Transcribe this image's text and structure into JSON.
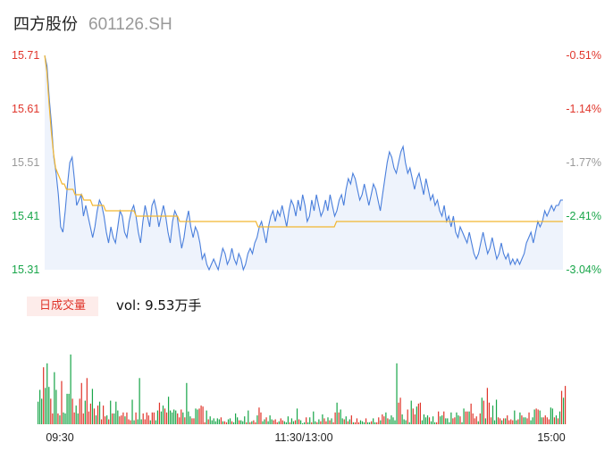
{
  "header": {
    "name": "四方股份",
    "code": "601126.SH"
  },
  "volume_panel": {
    "tab_label": "日成交量",
    "vol_prefix": "vol:",
    "vol_value": "9.53万手"
  },
  "colors": {
    "up": "#e0352b",
    "down": "#19a64a",
    "neutral": "#999999",
    "price_line": "#4a7fdc",
    "avg_line": "#f2b630",
    "area_fill": "#eef3fc"
  },
  "chart_data": [
    {
      "type": "line",
      "title": "",
      "y_ticks": [
        {
          "value": "15.71",
          "color": "up"
        },
        {
          "value": "15.61",
          "color": "up"
        },
        {
          "value": "15.51",
          "color": "neutral"
        },
        {
          "value": "15.41",
          "color": "down"
        },
        {
          "value": "15.31",
          "color": "down"
        }
      ],
      "y2_ticks": [
        {
          "value": "-0.51%",
          "color": "up"
        },
        {
          "value": "-1.14%",
          "color": "up"
        },
        {
          "value": "-1.77%",
          "color": "neutral"
        },
        {
          "value": "-2.41%",
          "color": "down"
        },
        {
          "value": "-3.04%",
          "color": "down"
        }
      ],
      "ylim": [
        15.31,
        15.71
      ],
      "x_ticks": [
        "09:30",
        "11:30/13:00",
        "15:00"
      ],
      "series": [
        {
          "values": [
            15.71,
            15.69,
            15.63,
            15.58,
            15.52,
            15.49,
            15.45,
            15.39,
            15.38,
            15.42,
            15.47,
            15.51,
            15.52,
            15.48,
            15.43,
            15.44,
            15.45,
            15.41,
            15.43,
            15.41,
            15.39,
            15.37,
            15.39,
            15.42,
            15.44,
            15.43,
            15.41,
            15.38,
            15.36,
            15.39,
            15.37,
            15.36,
            15.39,
            15.42,
            15.41,
            15.38,
            15.37,
            15.4,
            15.42,
            15.43,
            15.41,
            15.38,
            15.36,
            15.4,
            15.43,
            15.41,
            15.39,
            15.43,
            15.44,
            15.42,
            15.39,
            15.41,
            15.43,
            15.41,
            15.38,
            15.36,
            15.4,
            15.42,
            15.41,
            15.38,
            15.35,
            15.37,
            15.4,
            15.42,
            15.39,
            15.37,
            15.39,
            15.38,
            15.36,
            15.33,
            15.34,
            15.32,
            15.31,
            15.32,
            15.33,
            15.32,
            15.31,
            15.33,
            15.35,
            15.34,
            15.32,
            15.33,
            15.35,
            15.33,
            15.32,
            15.34,
            15.33,
            15.31,
            15.32,
            15.34,
            15.35,
            15.34,
            15.36,
            15.37,
            15.39,
            15.4,
            15.38,
            15.36,
            15.39,
            15.41,
            15.42,
            15.4,
            15.42,
            15.41,
            15.43,
            15.41,
            15.39,
            15.42,
            15.44,
            15.43,
            15.41,
            15.44,
            15.42,
            15.45,
            15.43,
            15.4,
            15.41,
            15.44,
            15.42,
            15.45,
            15.43,
            15.41,
            15.42,
            15.44,
            15.42,
            15.45,
            15.43,
            15.41,
            15.42,
            15.44,
            15.45,
            15.43,
            15.46,
            15.48,
            15.47,
            15.49,
            15.48,
            15.46,
            15.44,
            15.45,
            15.47,
            15.45,
            15.43,
            15.45,
            15.47,
            15.46,
            15.44,
            15.42,
            15.45,
            15.48,
            15.51,
            15.53,
            15.52,
            15.5,
            15.49,
            15.51,
            15.53,
            15.54,
            15.51,
            15.49,
            15.5,
            15.48,
            15.46,
            15.48,
            15.49,
            15.47,
            15.45,
            15.48,
            15.46,
            15.44,
            15.45,
            15.43,
            15.44,
            15.42,
            15.41,
            15.43,
            15.4,
            15.41,
            15.39,
            15.41,
            15.38,
            15.37,
            15.39,
            15.38,
            15.37,
            15.36,
            15.38,
            15.36,
            15.34,
            15.33,
            15.34,
            15.36,
            15.38,
            15.36,
            15.34,
            15.35,
            15.37,
            15.35,
            15.33,
            15.34,
            15.36,
            15.34,
            15.33,
            15.34,
            15.32,
            15.33,
            15.32,
            15.33,
            15.32,
            15.33,
            15.34,
            15.36,
            15.37,
            15.38,
            15.36,
            15.38,
            15.4,
            15.39,
            15.4,
            15.42,
            15.41,
            15.42,
            15.43,
            15.42,
            15.43,
            15.43,
            15.44,
            15.44
          ]
        },
        {
          "values": [
            15.71,
            15.68,
            15.62,
            15.57,
            15.53,
            15.5,
            15.49,
            15.48,
            15.47,
            15.47,
            15.46,
            15.46,
            15.46,
            15.46,
            15.45,
            15.45,
            15.45,
            15.45,
            15.44,
            15.44,
            15.44,
            15.44,
            15.43,
            15.43,
            15.43,
            15.43,
            15.43,
            15.43,
            15.42,
            15.42,
            15.42,
            15.42,
            15.42,
            15.42,
            15.42,
            15.42,
            15.42,
            15.42,
            15.42,
            15.42,
            15.42,
            15.42,
            15.41,
            15.41,
            15.41,
            15.41,
            15.41,
            15.41,
            15.41,
            15.41,
            15.41,
            15.41,
            15.41,
            15.41,
            15.41,
            15.41,
            15.41,
            15.41,
            15.41,
            15.41,
            15.41,
            15.41,
            15.4,
            15.4,
            15.4,
            15.4,
            15.4,
            15.4,
            15.4,
            15.4,
            15.4,
            15.4,
            15.4,
            15.4,
            15.4,
            15.4,
            15.4,
            15.4,
            15.4,
            15.4,
            15.4,
            15.4,
            15.4,
            15.4,
            15.4,
            15.4,
            15.4,
            15.4,
            15.4,
            15.4,
            15.4,
            15.4,
            15.4,
            15.4,
            15.4,
            15.4,
            15.4,
            15.4,
            15.39,
            15.39,
            15.39,
            15.39,
            15.39,
            15.39,
            15.39,
            15.39,
            15.39,
            15.39,
            15.39,
            15.39,
            15.39,
            15.39,
            15.39,
            15.39,
            15.39,
            15.39,
            15.39,
            15.39,
            15.39,
            15.39,
            15.39,
            15.39,
            15.39,
            15.39,
            15.39,
            15.39,
            15.39,
            15.39,
            15.39,
            15.39,
            15.39,
            15.39,
            15.39,
            15.39,
            15.4,
            15.4,
            15.4,
            15.4,
            15.4,
            15.4,
            15.4,
            15.4,
            15.4,
            15.4,
            15.4,
            15.4,
            15.4,
            15.4,
            15.4,
            15.4,
            15.4,
            15.4,
            15.4,
            15.4,
            15.4,
            15.4,
            15.4,
            15.4,
            15.4,
            15.4,
            15.4,
            15.4,
            15.4,
            15.4,
            15.4,
            15.4,
            15.4,
            15.4,
            15.4,
            15.4,
            15.4,
            15.4,
            15.4,
            15.4,
            15.4,
            15.4,
            15.4,
            15.4,
            15.4,
            15.4,
            15.4,
            15.4,
            15.4,
            15.4,
            15.4,
            15.4,
            15.4,
            15.4,
            15.4,
            15.4,
            15.4,
            15.4,
            15.4,
            15.4,
            15.4,
            15.4,
            15.4,
            15.4,
            15.4,
            15.4,
            15.4,
            15.4,
            15.4,
            15.4,
            15.4,
            15.4,
            15.4,
            15.4,
            15.4,
            15.4,
            15.4,
            15.4,
            15.4,
            15.4,
            15.4,
            15.4,
            15.4,
            15.4,
            15.4,
            15.4,
            15.4,
            15.4,
            15.4,
            15.4,
            15.4,
            15.4,
            15.4,
            15.4,
            15.4,
            15.4,
            15.4,
            15.4,
            15.4,
            15.4,
            15.4,
            15.4,
            15.4,
            15.4,
            15.4
          ]
        }
      ]
    },
    {
      "type": "bar",
      "title": "",
      "ylim": [
        0,
        1
      ],
      "values": [
        0.23,
        0.35,
        0.26,
        0.58,
        0.37,
        0.62,
        0.38,
        0.26,
        0.11,
        0.53,
        0.35,
        0.11,
        0.09,
        0.44,
        0.12,
        0.11,
        0.31,
        0.31,
        0.71,
        0.26,
        0.12,
        0.19,
        0.11,
        0.26,
        0.42,
        0.11,
        0.24,
        0.47,
        0.13,
        0.21,
        0.36,
        0.16,
        0.09,
        0.19,
        0.23,
        0.05,
        0.19,
        0.08,
        0.09,
        0.05,
        0.24,
        0.11,
        0.11,
        0.23,
        0.14,
        0.08,
        0.09,
        0.12,
        0.08,
        0.12,
        0.05,
        0.04,
        0.25,
        0.04,
        0.12,
        0.05,
        0.47,
        0.05,
        0.11,
        0.05,
        0.12,
        0.09,
        0.04,
        0.12,
        0.12,
        0.04,
        0.14,
        0.22,
        0.13,
        0.19,
        0.16,
        0.12,
        0.28,
        0.14,
        0.12,
        0.15,
        0.14,
        0.11,
        0.07,
        0.15,
        0.12,
        0.07,
        0.42,
        0.13,
        0.08,
        0.06,
        0.06,
        0.16,
        0.15,
        0.16,
        0.19,
        0.18,
        0.02,
        0.14,
        0.05,
        0.08,
        0.04,
        0.06,
        0.03,
        0.06,
        0.05,
        0.07,
        0.03,
        0.03,
        0.02,
        0.05,
        0.06,
        0.03,
        0.02,
        0.11,
        0.07,
        0.04,
        0.04,
        0.03,
        0.08,
        0.02,
        0.14,
        0.02,
        0.03,
        0.04,
        0.02,
        0.09,
        0.17,
        0.12,
        0.03,
        0.05,
        0.07,
        0.03,
        0.09,
        0.05,
        0.04,
        0.05,
        0.02,
        0.03,
        0.06,
        0.04,
        0.03,
        0.02,
        0.08,
        0.02,
        0.06,
        0.03,
        0.04,
        0.16,
        0.05,
        0.04,
        0.01,
        0.02,
        0.07,
        0.02,
        0.07,
        0.02,
        0.13,
        0.03,
        0.02,
        0.05,
        0.03,
        0.1,
        0.06,
        0.03,
        0.07,
        0.04,
        0.06,
        0.02,
        0.12,
        0.22,
        0.12,
        0.15,
        0.06,
        0.05,
        0.08,
        0.03,
        0.05,
        0.09,
        0.02,
        0.02,
        0.06,
        0.02,
        0.04,
        0.03,
        0.02,
        0.06,
        0.02,
        0.02,
        0.03,
        0.06,
        0.02,
        0.02,
        0.07,
        0.04,
        0.1,
        0.08,
        0.12,
        0.06,
        0.05,
        0.09,
        0.07,
        0.04,
        0.62,
        0.22,
        0.27,
        0.1,
        0.05,
        0.04,
        0.15,
        0.02,
        0.24,
        0.16,
        0.1,
        0.18,
        0.21,
        0.22,
        0.04,
        0.1,
        0.07,
        0.09,
        0.07,
        0.03,
        0.08,
        0.02,
        0.02,
        0.13,
        0.08,
        0.09,
        0.13,
        0.06,
        0.06,
        0.02,
        0.12,
        0.06,
        0.07,
        0.12,
        0.09,
        0.08,
        0.02,
        0.16,
        0.13,
        0.13,
        0.13,
        0.21,
        0.11,
        0.06,
        0.08,
        0.03,
        0.11,
        0.27,
        0.24,
        0.06,
        0.37,
        0.22,
        0.07,
        0.19,
        0.04,
        0.25,
        0.07,
        0.06,
        0.04,
        0.06,
        0.06,
        0.09,
        0.04,
        0.05,
        0.04,
        0.14,
        0.04,
        0.05,
        0.12,
        0.09,
        0.07,
        0.07,
        0.06,
        0.12,
        0.04,
        0.07,
        0.15,
        0.16,
        0.15,
        0.14,
        0.07,
        0.07,
        0.09,
        0.07,
        0.05,
        0.17,
        0.16,
        0.07,
        0.09,
        0.06,
        0.13,
        0.34,
        0.27,
        0.39
      ],
      "colors": [
        "down",
        "down",
        "down",
        "up",
        "down",
        "down",
        "down",
        "up",
        "up",
        "down",
        "down",
        "up",
        "down",
        "up",
        "down",
        "down",
        "down",
        "down",
        "down",
        "up",
        "up",
        "down",
        "down",
        "up",
        "up",
        "up",
        "down",
        "up",
        "up",
        "up",
        "down",
        "up",
        "down",
        "up",
        "down",
        "up",
        "up",
        "up",
        "down",
        "up",
        "down",
        "up",
        "down",
        "down",
        "down",
        "up",
        "up",
        "up",
        "down",
        "up",
        "up",
        "up",
        "down",
        "down",
        "up",
        "down",
        "down",
        "down",
        "up",
        "up",
        "up",
        "up",
        "down",
        "up",
        "up",
        "down",
        "down",
        "up",
        "down",
        "down",
        "up",
        "up",
        "down",
        "down",
        "down",
        "down",
        "down",
        "up",
        "up",
        "up",
        "down",
        "up",
        "down",
        "down",
        "down",
        "up",
        "up",
        "down",
        "down",
        "up",
        "up",
        "up",
        "up",
        "down",
        "up",
        "down",
        "down",
        "down",
        "down",
        "down",
        "down",
        "up",
        "down",
        "up",
        "up",
        "down",
        "down",
        "up",
        "down",
        "down",
        "down",
        "up",
        "down",
        "down",
        "down",
        "up",
        "down",
        "up",
        "down",
        "up",
        "up",
        "down",
        "up",
        "up",
        "down",
        "down",
        "up",
        "down",
        "down",
        "down",
        "up",
        "up",
        "up",
        "down",
        "up",
        "up",
        "down",
        "down",
        "down",
        "up",
        "down",
        "down",
        "up",
        "down",
        "up",
        "down",
        "down",
        "down",
        "up",
        "down",
        "down",
        "up",
        "down",
        "down",
        "up",
        "down",
        "up",
        "down",
        "up",
        "up",
        "down",
        "up",
        "down",
        "up",
        "up",
        "down",
        "up",
        "down",
        "down",
        "up",
        "down",
        "up",
        "down",
        "up",
        "down",
        "up",
        "up",
        "up",
        "down",
        "down",
        "down",
        "up",
        "down",
        "down",
        "up",
        "down",
        "down",
        "up",
        "up",
        "down",
        "up",
        "up",
        "down",
        "up",
        "down",
        "down",
        "down",
        "down",
        "down",
        "up",
        "up",
        "down",
        "down",
        "down",
        "up",
        "down",
        "down",
        "up",
        "up",
        "down",
        "up",
        "up",
        "down",
        "down",
        "down",
        "down",
        "up",
        "down",
        "down",
        "down",
        "up",
        "up",
        "down",
        "down",
        "up",
        "down",
        "down",
        "down",
        "down",
        "up",
        "up",
        "down",
        "down",
        "up",
        "down",
        "down",
        "up",
        "up",
        "down",
        "up",
        "up",
        "up",
        "up",
        "down",
        "up",
        "down",
        "up",
        "down",
        "up",
        "up",
        "up",
        "down",
        "down",
        "down",
        "up",
        "up",
        "down",
        "up",
        "down",
        "up",
        "up",
        "up",
        "up",
        "down",
        "down",
        "up",
        "down",
        "up",
        "down",
        "down",
        "up",
        "up",
        "down",
        "down",
        "down",
        "up",
        "up",
        "down",
        "down",
        "up",
        "up",
        "up",
        "up",
        "down",
        "down",
        "up",
        "down",
        "up",
        "down",
        "up",
        "down",
        "up",
        "down",
        "up",
        "up",
        "up",
        "down",
        "up",
        "up",
        "up",
        "down"
      ]
    }
  ]
}
